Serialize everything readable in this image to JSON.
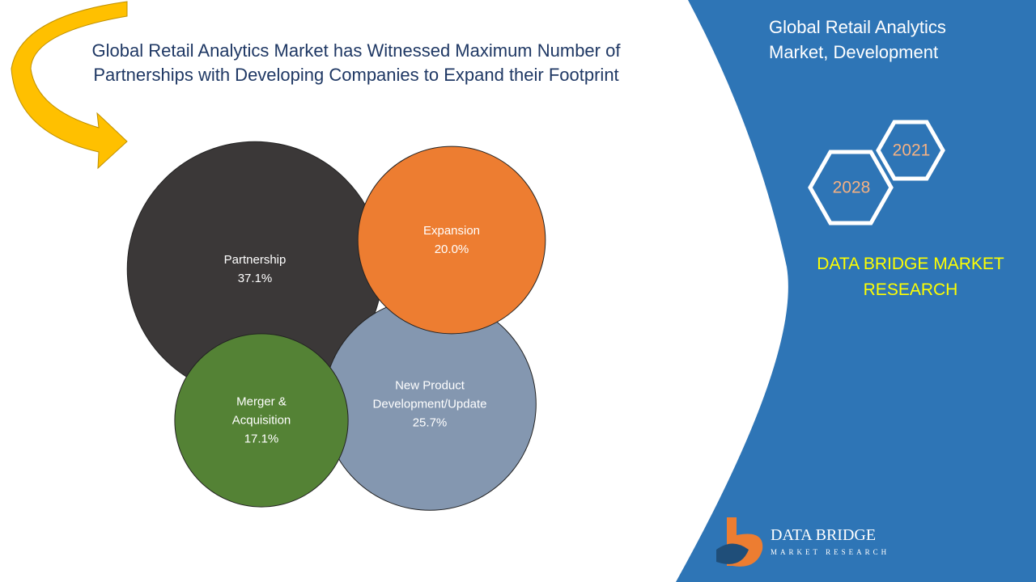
{
  "chart_data": {
    "type": "bubble",
    "title": "Global Retail Analytics Market has Witnessed Maximum Number of Partnerships with Developing Companies to Expand their Footprint",
    "categories": [
      "Partnership",
      "New Product Development/Update",
      "Expansion",
      "Merger & Acquisition"
    ],
    "values": [
      37.1,
      25.7,
      20.0,
      17.1
    ],
    "value_labels": [
      "37.1%",
      "25.7%",
      "20.0%",
      "17.1%"
    ],
    "colors": [
      "#3b3838",
      "#8497b0",
      "#ed7d31",
      "#548235"
    ]
  },
  "panel": {
    "heading": "Global Retail Analytics Market,  Development",
    "years": [
      "2021",
      "2028"
    ],
    "brand": "DATA BRIDGE MARKET RESEARCH",
    "logo_name": "DATA BRIDGE",
    "logo_tagline": "MARKET RESEARCH"
  }
}
